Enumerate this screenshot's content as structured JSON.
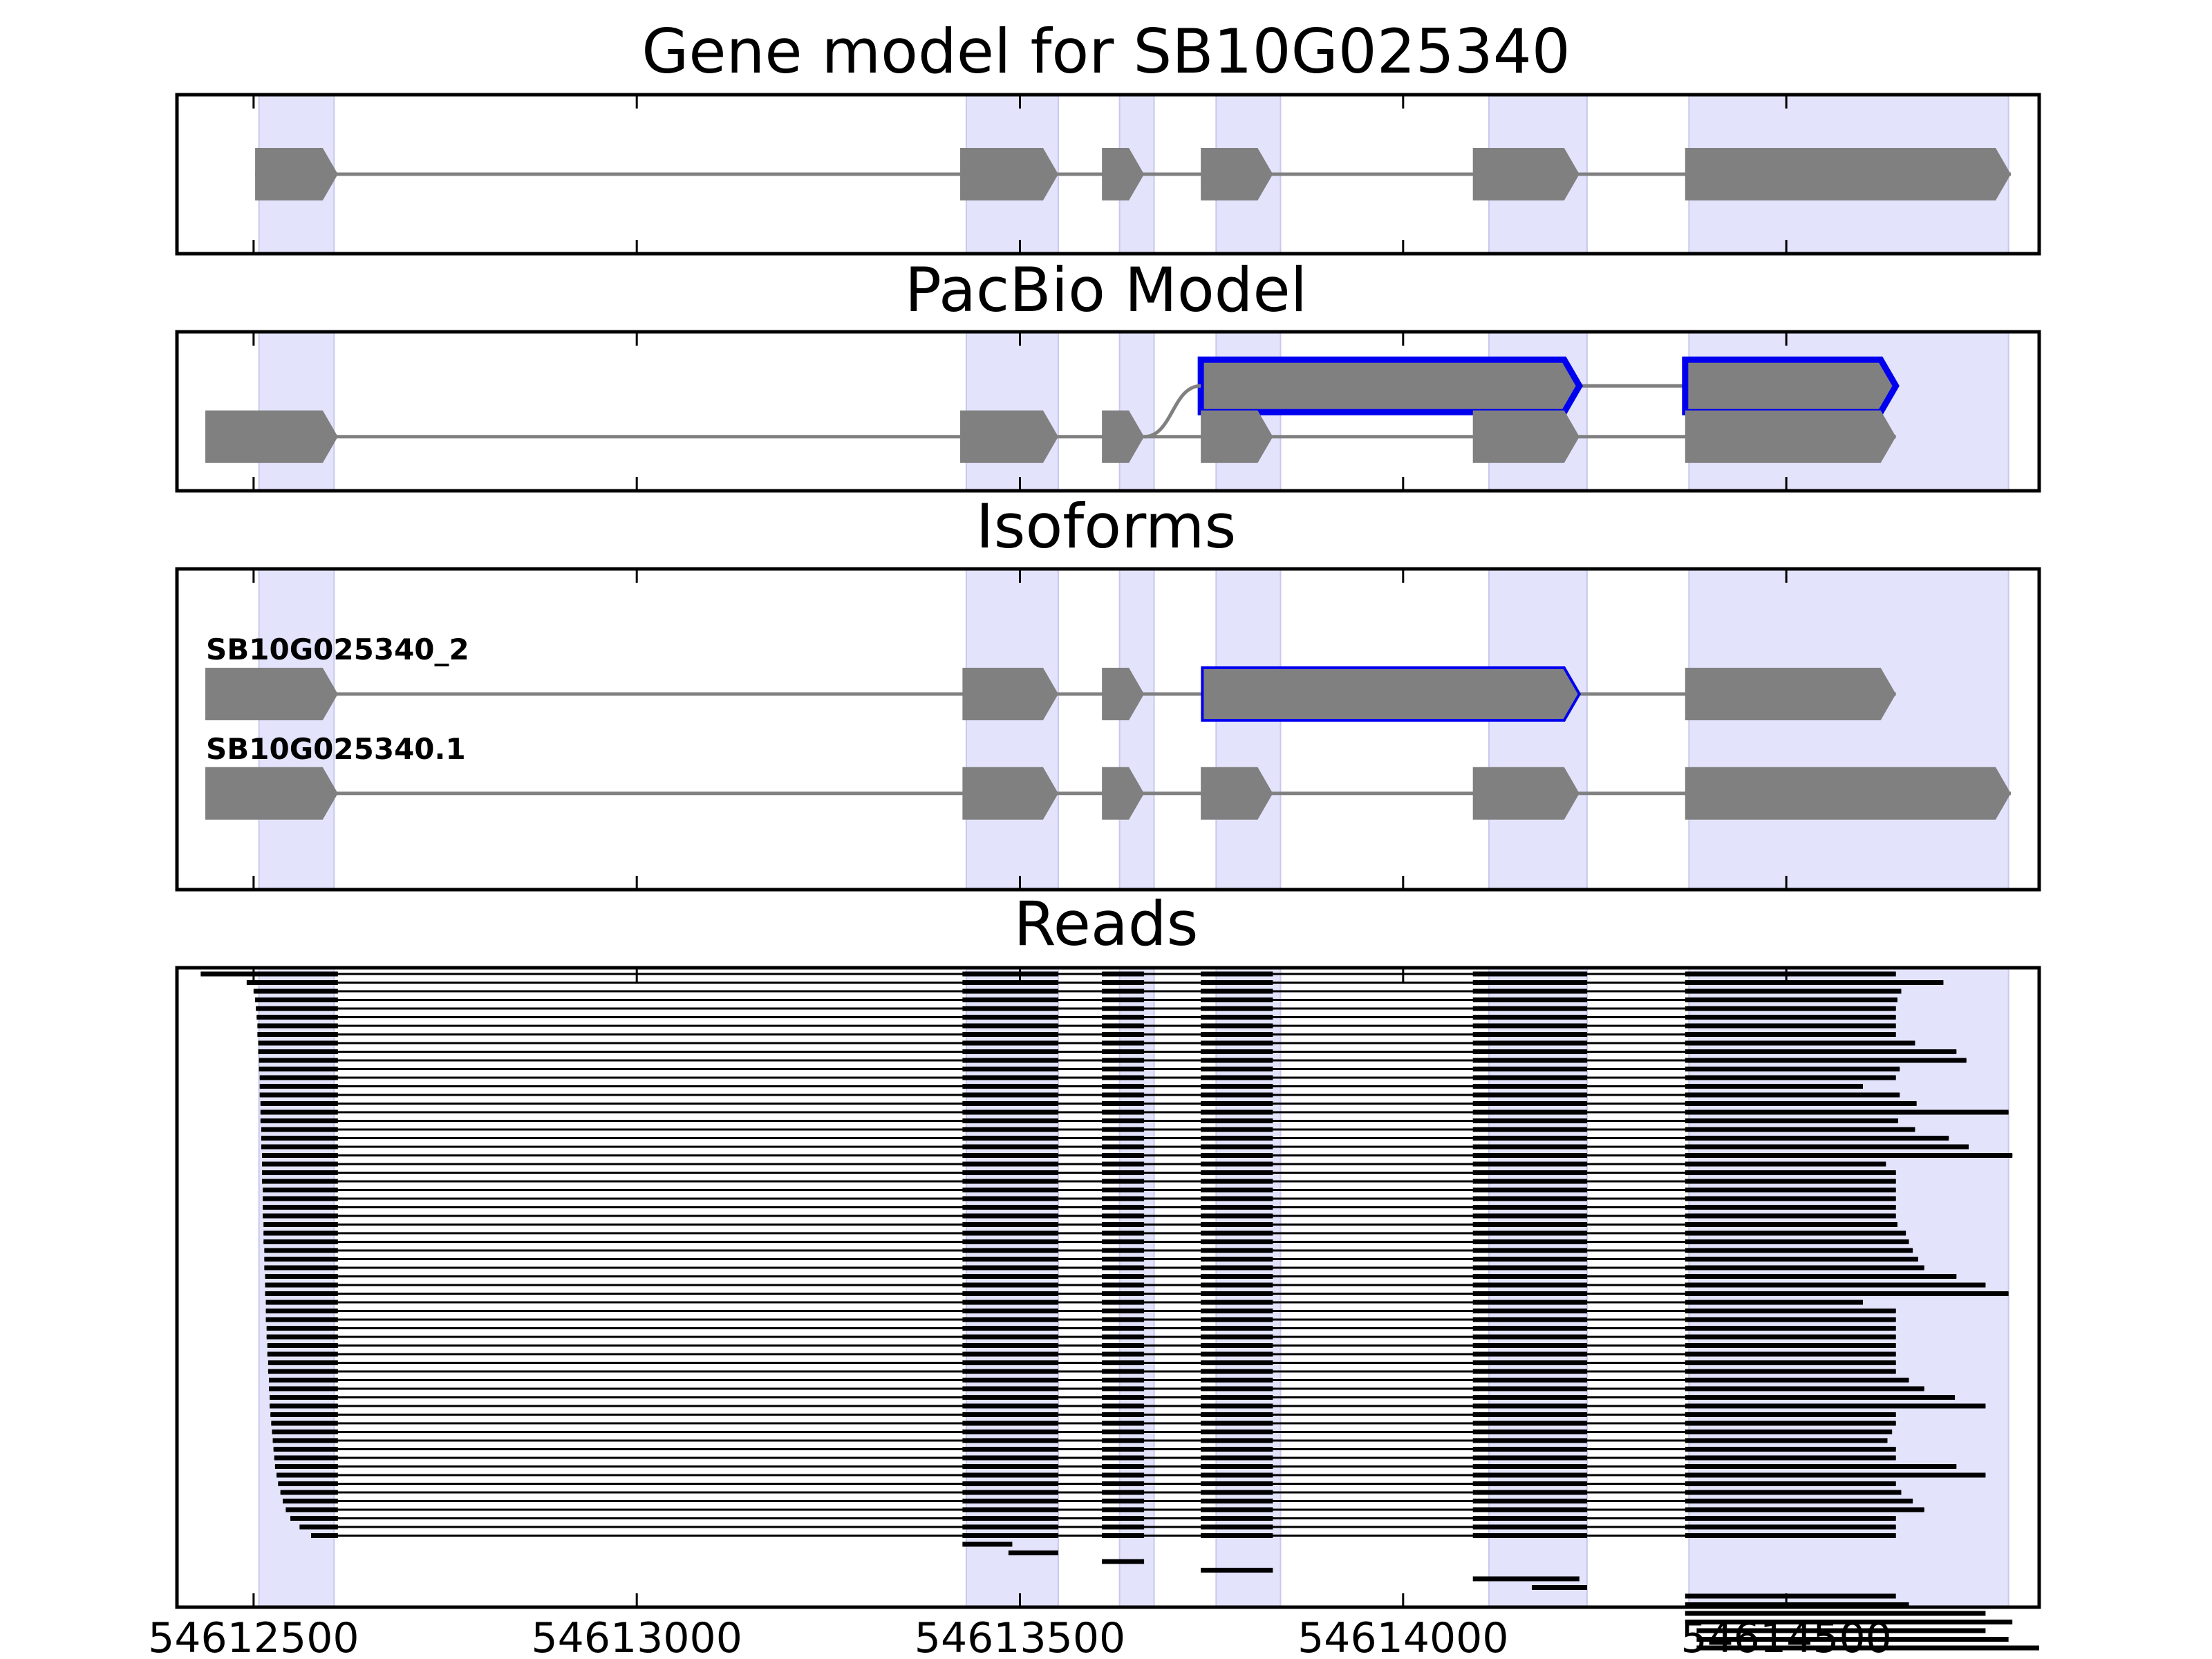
{
  "chart_data": {
    "type": "gene-track",
    "xlim": [
      54612400,
      54614830
    ],
    "x_ticks": [
      54612500,
      54613000,
      54613500,
      54614000,
      54614500
    ],
    "x_tick_labels": [
      "54612500",
      "54613000",
      "54613500",
      "54614000",
      "54614500"
    ],
    "highlight_regions": [
      [
        54612507,
        54612605
      ],
      [
        54613430,
        54613550
      ],
      [
        54613630,
        54613675
      ],
      [
        54613756,
        54613840
      ],
      [
        54614112,
        54614240
      ],
      [
        54614373,
        54614790
      ]
    ],
    "colors": {
      "highlight": "#e3e3fb",
      "exon": "#808080",
      "intron": "#808080",
      "selected_outline": "#0000ee",
      "read": "#000000",
      "frame": "#000000"
    },
    "panels": [
      {
        "id": "gene-model",
        "title": "Gene model for SB10G025340",
        "transcripts": [
          {
            "label": "",
            "y": 0.5,
            "exons": [
              [
                54612502,
                54612610
              ],
              [
                54613422,
                54613550
              ],
              [
                54613607,
                54613662
              ],
              [
                54613736,
                54613830
              ],
              [
                54614091,
                54614230
              ],
              [
                54614368,
                54614793
              ]
            ]
          }
        ]
      },
      {
        "id": "pacbio-model",
        "title": "PacBio Model",
        "transcripts": [
          {
            "label": "",
            "y": 0.34,
            "selected": true,
            "exons": [
              [
                54613736,
                54614230
              ],
              [
                54614368,
                54614643
              ]
            ]
          },
          {
            "label": "",
            "y": 0.66,
            "exons": [
              [
                54612437,
                54612610
              ],
              [
                54613422,
                54613550
              ],
              [
                54613607,
                54613662
              ],
              [
                54613736,
                54613830
              ],
              [
                54614091,
                54614230
              ],
              [
                54614368,
                54614643
              ]
            ]
          }
        ],
        "links": [
          {
            "from": [
              54613662,
              0.66
            ],
            "to": [
              54613736,
              0.34
            ]
          }
        ]
      },
      {
        "id": "isoforms",
        "title": "Isoforms",
        "transcripts": [
          {
            "label": "SB10G025340_2",
            "y": 0.39,
            "selected_exon": 3,
            "exons": [
              [
                54612437,
                54612610
              ],
              [
                54613425,
                54613550
              ],
              [
                54613607,
                54613662
              ],
              [
                54613738,
                54614230
              ],
              [
                54614368,
                54614643
              ]
            ]
          },
          {
            "label": "SB10G025340.1",
            "y": 0.7,
            "exons": [
              [
                54612437,
                54612610
              ],
              [
                54613425,
                54613550
              ],
              [
                54613607,
                54613662
              ],
              [
                54613736,
                54613830
              ],
              [
                54614091,
                54614230
              ],
              [
                54614368,
                54614793
              ]
            ]
          }
        ]
      },
      {
        "id": "reads",
        "title": "Reads",
        "read_count": 66,
        "first_exon_starts": [
          54612431,
          54612491,
          54612500,
          54612502,
          54612503,
          54612504,
          54612505,
          54612505,
          54612506,
          54612506,
          54612507,
          54612507,
          54612508,
          54612508,
          54612508,
          54612509,
          54612509,
          54612509,
          54612510,
          54612510,
          54612510,
          54612511,
          54612511,
          54612511,
          54612511,
          54612512,
          54612512,
          54612512,
          54612512,
          54612513,
          54612513,
          54612513,
          54612514,
          54612514,
          54612514,
          54612515,
          54612515,
          54612515,
          54612516,
          54612516,
          54612516,
          54612517,
          54612517,
          54612518,
          54612518,
          54612519,
          54612519,
          54612520,
          54612520,
          54612521,
          54612521,
          54612522,
          54612523,
          54612524,
          54612525,
          54612526,
          54612527,
          54612528,
          54612530,
          54612532,
          54612535,
          54612538,
          54612542,
          54612548,
          54612560,
          54612575
        ],
        "last_exon_ends": [
          54614643,
          54614705,
          54614650,
          54614645,
          54614643,
          54614643,
          54614643,
          54614643,
          54614668,
          54614722,
          54614735,
          54614648,
          54614643,
          54614600,
          54614648,
          54614670,
          54614790,
          54614646,
          54614668,
          54614712,
          54614738,
          54614795,
          54614630,
          54614643,
          54614643,
          54614643,
          54614643,
          54614643,
          54614643,
          54614645,
          54614656,
          54614660,
          54614665,
          54614672,
          54614680,
          54614722,
          54614760,
          54614790,
          54614600,
          54614643,
          54614643,
          54614643,
          54614643,
          54614643,
          54614643,
          54614643,
          54614643,
          54614660,
          54614680,
          54614720,
          54614760,
          54614643,
          54614643,
          54614638,
          54614632,
          54614643,
          54614643,
          54614722,
          54614760,
          54614643,
          54614650,
          54614665,
          54614680,
          54614643,
          54614643,
          54614643
        ],
        "partial_reads": [
          {
            "exons": [
              [
                54613425,
                54613490
              ]
            ]
          },
          {
            "exons": [
              [
                54613485,
                54613550
              ]
            ]
          },
          {
            "exons": [
              [
                54613607,
                54613662
              ]
            ]
          },
          {
            "exons": [
              [
                54613736,
                54613830
              ]
            ]
          },
          {
            "exons": [
              [
                54614091,
                54614230
              ]
            ]
          },
          {
            "exons": [
              [
                54614168,
                54614240
              ]
            ]
          },
          {
            "exons": [
              [
                54614368,
                54614643
              ]
            ]
          },
          {
            "exons": [
              [
                54614368,
                54614660
              ]
            ]
          },
          {
            "exons": [
              [
                54614368,
                54614760
              ]
            ]
          },
          {
            "exons": [
              [
                54614368,
                54614795
              ]
            ]
          },
          {
            "exons": [
              [
                54614383,
                54614760
              ]
            ]
          },
          {
            "exons": [
              [
                54614383,
                54614790
              ]
            ]
          },
          {
            "exons": [
              [
                54614383,
                54614830
              ]
            ]
          }
        ]
      }
    ]
  }
}
